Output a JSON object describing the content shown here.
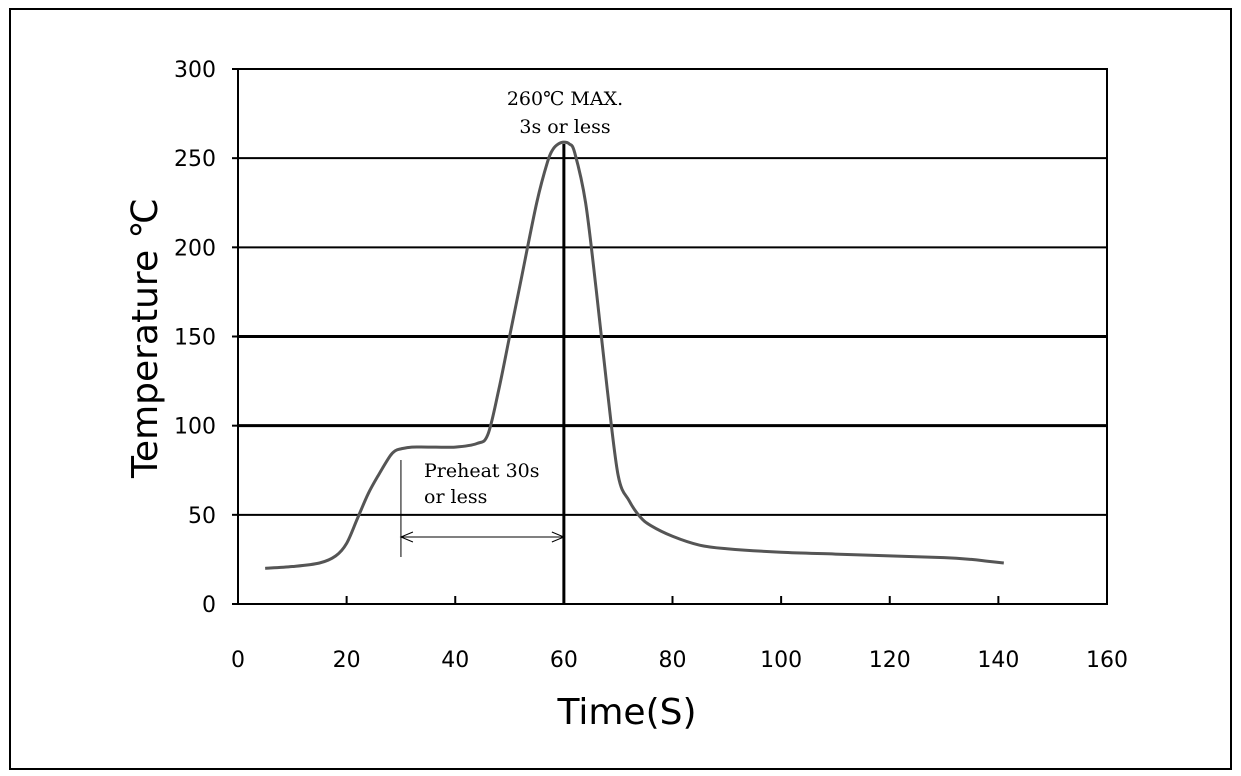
{
  "chart_data": {
    "type": "line",
    "title": "",
    "xlabel": "Time(S)",
    "ylabel": "Temperature ℃",
    "xlim": [
      0,
      160
    ],
    "ylim": [
      0,
      300
    ],
    "x_ticks": [
      "0",
      "20",
      "40",
      "60",
      "80",
      "100",
      "120",
      "140",
      "160"
    ],
    "y_ticks": [
      "0",
      "50",
      "100",
      "150",
      "200",
      "250",
      "300"
    ],
    "grid": "horizontal",
    "legend": "none",
    "series": [
      {
        "color": "#555555",
        "x": [
          5,
          10,
          15,
          18,
          20,
          22,
          24,
          26,
          28,
          29,
          30,
          32,
          35,
          40,
          44,
          46,
          48,
          50,
          52,
          55,
          57,
          58,
          59,
          60,
          61,
          62,
          64,
          66,
          68,
          70,
          72,
          74,
          76,
          80,
          85,
          90,
          100,
          110,
          120,
          130,
          135,
          138,
          141
        ],
        "y": [
          20,
          21,
          23,
          27,
          34,
          48,
          62,
          73,
          83,
          86,
          87,
          88,
          88,
          88,
          90,
          95,
          120,
          150,
          180,
          225,
          248,
          255,
          258,
          259,
          258,
          253,
          225,
          175,
          120,
          72,
          58,
          49,
          44,
          38,
          33,
          31,
          29,
          28,
          27,
          26,
          25,
          24,
          23
        ]
      }
    ],
    "annotations": {
      "peak_line1": "260℃ MAX.",
      "peak_line2": "3s or less",
      "preheat_line1": "Preheat 30s",
      "preheat_line2": "or less"
    },
    "peak_marker_x": 60,
    "preheat_span": [
      30,
      60
    ]
  }
}
